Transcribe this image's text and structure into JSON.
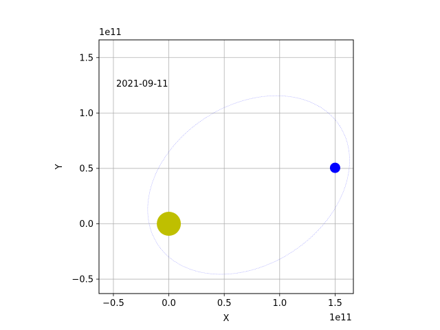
{
  "chart_data": {
    "type": "scatter",
    "title": "",
    "xlabel": "X",
    "ylabel": "Y",
    "x_offset_label": "1e11",
    "y_offset_label": "1e11",
    "annotation": "2021-09-11",
    "xlim": [
      -0.63,
      1.665
    ],
    "ylim": [
      -0.63,
      1.66
    ],
    "xticks": [
      -0.5,
      0.0,
      0.5,
      1.0,
      1.5
    ],
    "xtick_labels": [
      "−0.5",
      "0.0",
      "0.5",
      "1.0",
      "1.5"
    ],
    "yticks": [
      -0.5,
      0.0,
      0.5,
      1.0,
      1.5
    ],
    "ytick_labels": [
      "−0.5",
      "0.0",
      "0.5",
      "1.0",
      "1.5"
    ],
    "grid": true,
    "orbit": {
      "center": [
        0.72,
        0.35
      ],
      "semi_axes": [
        0.98,
        0.72
      ],
      "rotation_deg": 33,
      "color": "#0000ff"
    },
    "bodies": [
      {
        "name": "sun",
        "x": 0.0,
        "y": 0.0,
        "color": "#bfbf00"
      },
      {
        "name": "planet",
        "x": 1.5,
        "y": 0.505,
        "color": "#0000ff"
      }
    ]
  }
}
